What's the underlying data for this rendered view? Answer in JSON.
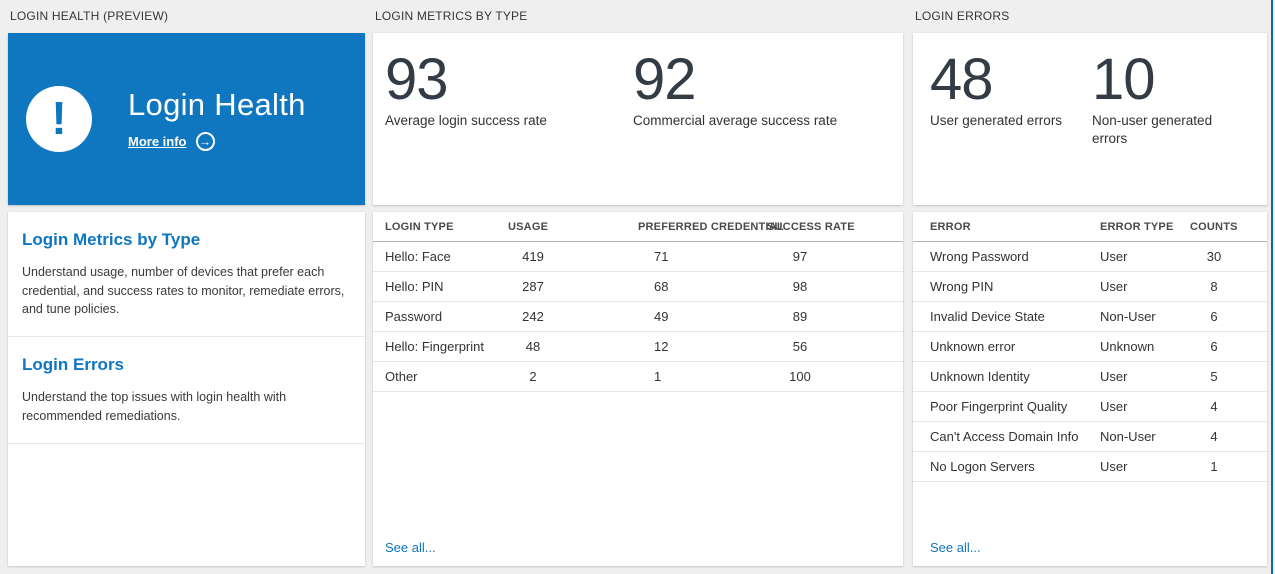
{
  "page": {
    "background": "#efefef",
    "card_background": "#ffffff",
    "accent_blue": "#0f76c0",
    "link_blue": "#0f76c0",
    "edge_strip_blue": "#15689f",
    "big_number_color": "#333b44"
  },
  "section_headers": {
    "left": "LOGIN HEALTH (PREVIEW)",
    "middle": "LOGIN METRICS BY TYPE",
    "right": "LOGIN ERRORS"
  },
  "hero": {
    "title": "Login Health",
    "more_info_label": "More info",
    "icon_glyph": "!",
    "arrow_glyph": "→"
  },
  "info_cards": [
    {
      "title": "Login Metrics by Type",
      "description": "Understand usage, number of devices that prefer each credential, and success rates to monitor, remediate errors, and tune policies."
    },
    {
      "title": "Login Errors",
      "description": "Understand the top issues with login health with recommended remediations."
    }
  ],
  "metrics_summary": {
    "metrics": [
      {
        "value": 93,
        "label": "Average login success rate"
      },
      {
        "value": 92,
        "label": "Commercial average success rate"
      }
    ]
  },
  "errors_summary": {
    "metrics": [
      {
        "value": 48,
        "label": "User generated errors"
      },
      {
        "value": 10,
        "label": "Non-user generated errors"
      }
    ]
  },
  "login_table": {
    "headers": [
      "LOGIN TYPE",
      "USAGE",
      "PREFERRED CREDENTIAL",
      "SUCCESS RATE"
    ],
    "rows": [
      [
        "Hello: Face",
        419,
        71,
        97
      ],
      [
        "Hello: PIN",
        287,
        68,
        98
      ],
      [
        "Password",
        242,
        49,
        89
      ],
      [
        "Hello: Fingerprint",
        48,
        12,
        56
      ],
      [
        "Other",
        2,
        1,
        100
      ]
    ],
    "see_all": "See all..."
  },
  "errors_table": {
    "headers": [
      "ERROR",
      "ERROR TYPE",
      "COUNTS"
    ],
    "rows": [
      [
        "Wrong Password",
        "User",
        30
      ],
      [
        "Wrong PIN",
        "User",
        8
      ],
      [
        "Invalid Device State",
        "Non-User",
        6
      ],
      [
        "Unknown error",
        "Unknown",
        6
      ],
      [
        "Unknown Identity",
        "User",
        5
      ],
      [
        "Poor Fingerprint Quality",
        "User",
        4
      ],
      [
        "Can't Access Domain Info",
        "Non-User",
        4
      ],
      [
        "No Logon Servers",
        "User",
        1
      ]
    ],
    "see_all": "See all..."
  }
}
